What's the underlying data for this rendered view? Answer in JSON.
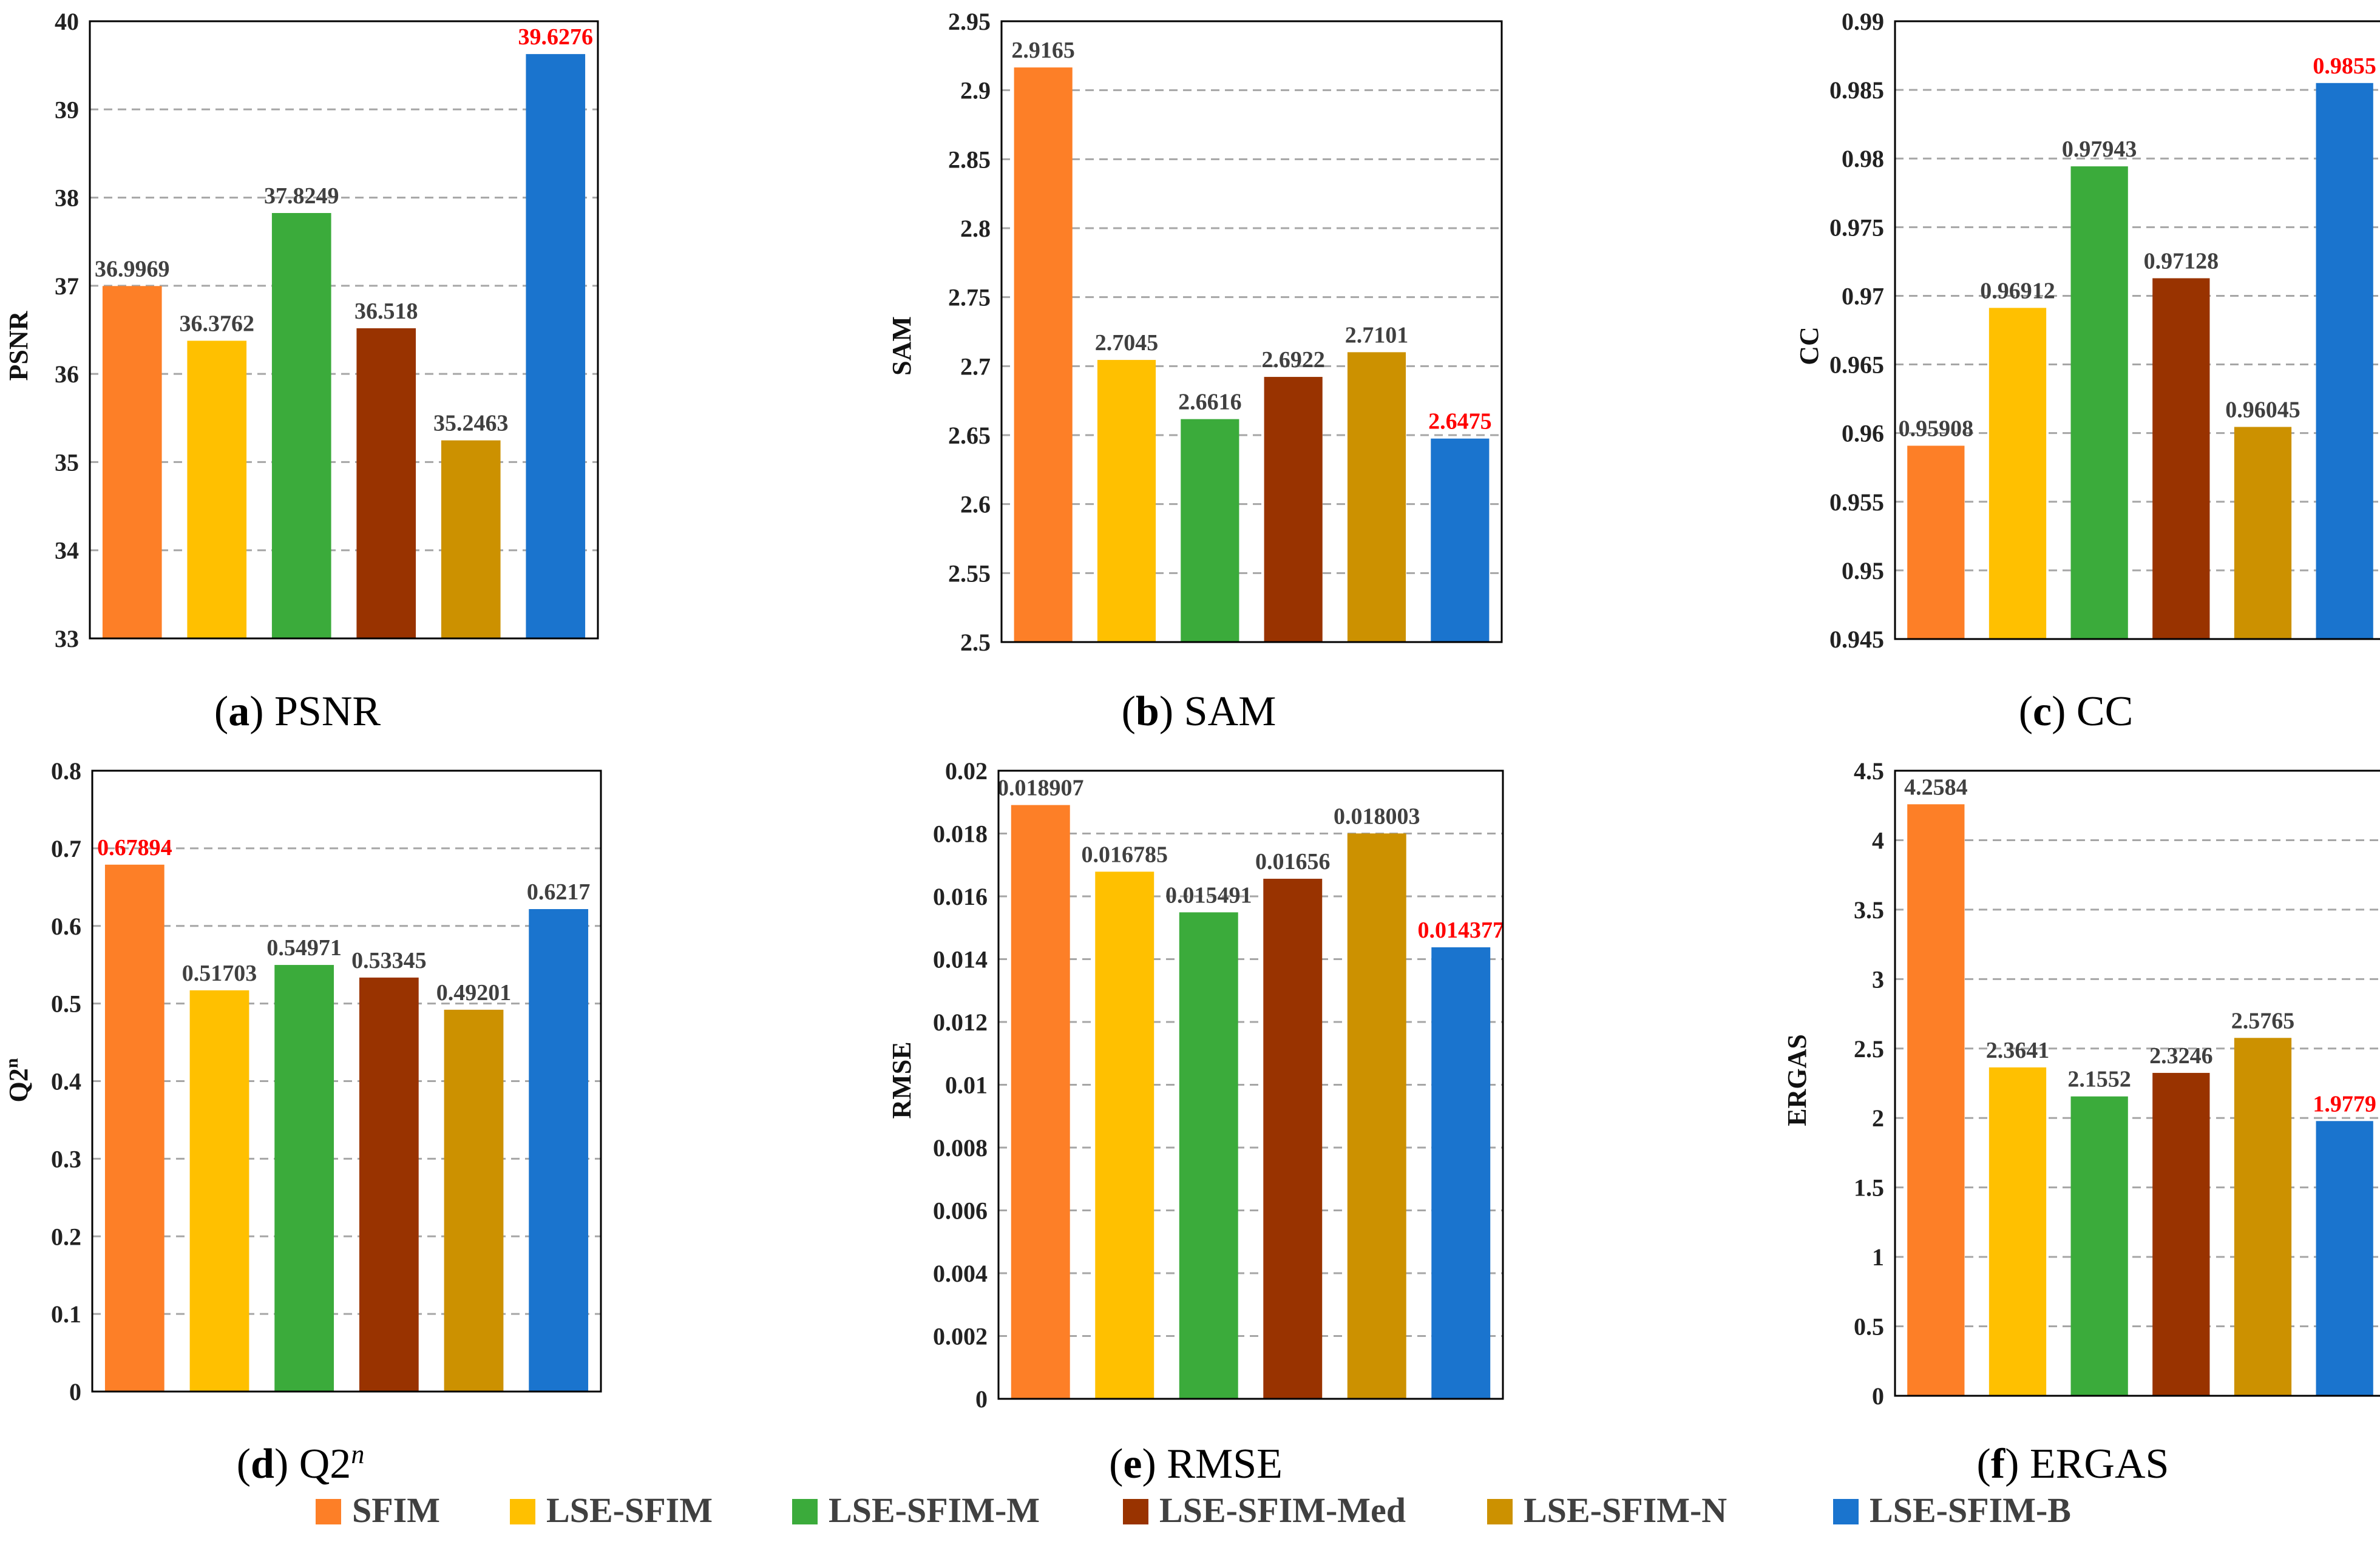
{
  "colors": {
    "SFIM": "#FD7F27",
    "LSE-SFIM": "#FFC000",
    "LSE-SFIM-M": "#3BAB3B",
    "LSE-SFIM-Med": "#993300",
    "LSE-SFIM-N": "#CC9100",
    "LSE-SFIM-B": "#1A74CE",
    "label_default": "#404040",
    "label_best": "#FF0000",
    "grid": "#A6A6A6"
  },
  "legend": {
    "entries": [
      "SFIM",
      "LSE-SFIM",
      "LSE-SFIM-M",
      "LSE-SFIM-Med",
      "LSE-SFIM-N",
      "LSE-SFIM-B"
    ]
  },
  "chart_data": [
    {
      "type": "bar",
      "id": "psnr",
      "caption": {
        "letter": "a",
        "name": "PSNR",
        "sup": ""
      },
      "ylabel": "PSNR",
      "categories": [
        "SFIM",
        "LSE-SFIM",
        "LSE-SFIM-M",
        "LSE-SFIM-Med",
        "LSE-SFIM-N",
        "LSE-SFIM-B"
      ],
      "values": [
        36.9969,
        36.3762,
        37.8249,
        36.518,
        35.2463,
        39.6276
      ],
      "labels": [
        "36.9969",
        "36.3762",
        "37.8249",
        "36.518",
        "35.2463",
        "39.6276"
      ],
      "best_index": 5,
      "ylim": [
        33,
        40
      ],
      "yticks": [
        "33",
        "34",
        "35",
        "36",
        "37",
        "38",
        "39",
        "40"
      ],
      "grid": true
    },
    {
      "type": "bar",
      "id": "sam",
      "caption": {
        "letter": "b",
        "name": "SAM",
        "sup": ""
      },
      "ylabel": "SAM",
      "categories": [
        "SFIM",
        "LSE-SFIM",
        "LSE-SFIM-M",
        "LSE-SFIM-Med",
        "LSE-SFIM-N",
        "LSE-SFIM-B"
      ],
      "values": [
        2.9165,
        2.7045,
        2.6616,
        2.6922,
        2.7101,
        2.6475
      ],
      "labels": [
        "2.9165",
        "2.7045",
        "2.6616",
        "2.6922",
        "2.7101",
        "2.6475"
      ],
      "best_index": 5,
      "ylim": [
        2.5,
        2.95
      ],
      "yticks": [
        "2.5",
        "2.55",
        "2.6",
        "2.65",
        "2.7",
        "2.75",
        "2.8",
        "2.85",
        "2.9",
        "2.95"
      ],
      "grid": true
    },
    {
      "type": "bar",
      "id": "cc",
      "caption": {
        "letter": "c",
        "name": "CC",
        "sup": ""
      },
      "ylabel": "CC",
      "categories": [
        "SFIM",
        "LSE-SFIM",
        "LSE-SFIM-M",
        "LSE-SFIM-Med",
        "LSE-SFIM-N",
        "LSE-SFIM-B"
      ],
      "values": [
        0.95908,
        0.96912,
        0.97943,
        0.97128,
        0.96045,
        0.9855
      ],
      "labels": [
        "0.95908",
        "0.96912",
        "0.97943",
        "0.97128",
        "0.96045",
        "0.9855"
      ],
      "best_index": 5,
      "ylim": [
        0.945,
        0.99
      ],
      "yticks": [
        "0.945",
        "0.95",
        "0.955",
        "0.96",
        "0.965",
        "0.97",
        "0.975",
        "0.98",
        "0.985",
        "0.99"
      ],
      "grid": true
    },
    {
      "type": "bar",
      "id": "q2n",
      "caption": {
        "letter": "d",
        "name": "Q2",
        "sup": "n"
      },
      "ylabel": "Q2",
      "ylabel_sup": "n",
      "categories": [
        "SFIM",
        "LSE-SFIM",
        "LSE-SFIM-M",
        "LSE-SFIM-Med",
        "LSE-SFIM-N",
        "LSE-SFIM-B"
      ],
      "values": [
        0.67894,
        0.51703,
        0.54971,
        0.53345,
        0.49201,
        0.6217
      ],
      "labels": [
        "0.67894",
        "0.51703",
        "0.54971",
        "0.53345",
        "0.49201",
        "0.6217"
      ],
      "best_index": 0,
      "ylim": [
        0,
        0.8
      ],
      "yticks": [
        "0",
        "0.1",
        "0.2",
        "0.3",
        "0.4",
        "0.5",
        "0.6",
        "0.7",
        "0.8"
      ],
      "grid": true
    },
    {
      "type": "bar",
      "id": "rmse",
      "caption": {
        "letter": "e",
        "name": "RMSE",
        "sup": ""
      },
      "ylabel": "RMSE",
      "categories": [
        "SFIM",
        "LSE-SFIM",
        "LSE-SFIM-M",
        "LSE-SFIM-Med",
        "LSE-SFIM-N",
        "LSE-SFIM-B"
      ],
      "values": [
        0.018907,
        0.016785,
        0.015491,
        0.01656,
        0.018003,
        0.014377
      ],
      "labels": [
        "0.018907",
        "0.016785",
        "0.015491",
        "0.01656",
        "0.018003",
        "0.014377"
      ],
      "best_index": 5,
      "ylim": [
        0,
        0.02
      ],
      "yticks": [
        "0",
        "0.002",
        "0.004",
        "0.006",
        "0.008",
        "0.01",
        "0.012",
        "0.014",
        "0.016",
        "0.018",
        "0.02"
      ],
      "grid": true
    },
    {
      "type": "bar",
      "id": "ergas",
      "caption": {
        "letter": "f",
        "name": "ERGAS",
        "sup": ""
      },
      "ylabel": "ERGAS",
      "categories": [
        "SFIM",
        "LSE-SFIM",
        "LSE-SFIM-M",
        "LSE-SFIM-Med",
        "LSE-SFIM-N",
        "LSE-SFIM-B"
      ],
      "values": [
        4.2584,
        2.3641,
        2.1552,
        2.3246,
        2.5765,
        1.9779
      ],
      "labels": [
        "4.2584",
        "2.3641",
        "2.1552",
        "2.3246",
        "2.5765",
        "1.9779"
      ],
      "best_index": 5,
      "ylim": [
        0,
        4.5
      ],
      "yticks": [
        "0",
        "0.5",
        "1",
        "1.5",
        "2",
        "2.5",
        "3",
        "3.5",
        "4",
        "4.5"
      ],
      "grid": true
    }
  ]
}
